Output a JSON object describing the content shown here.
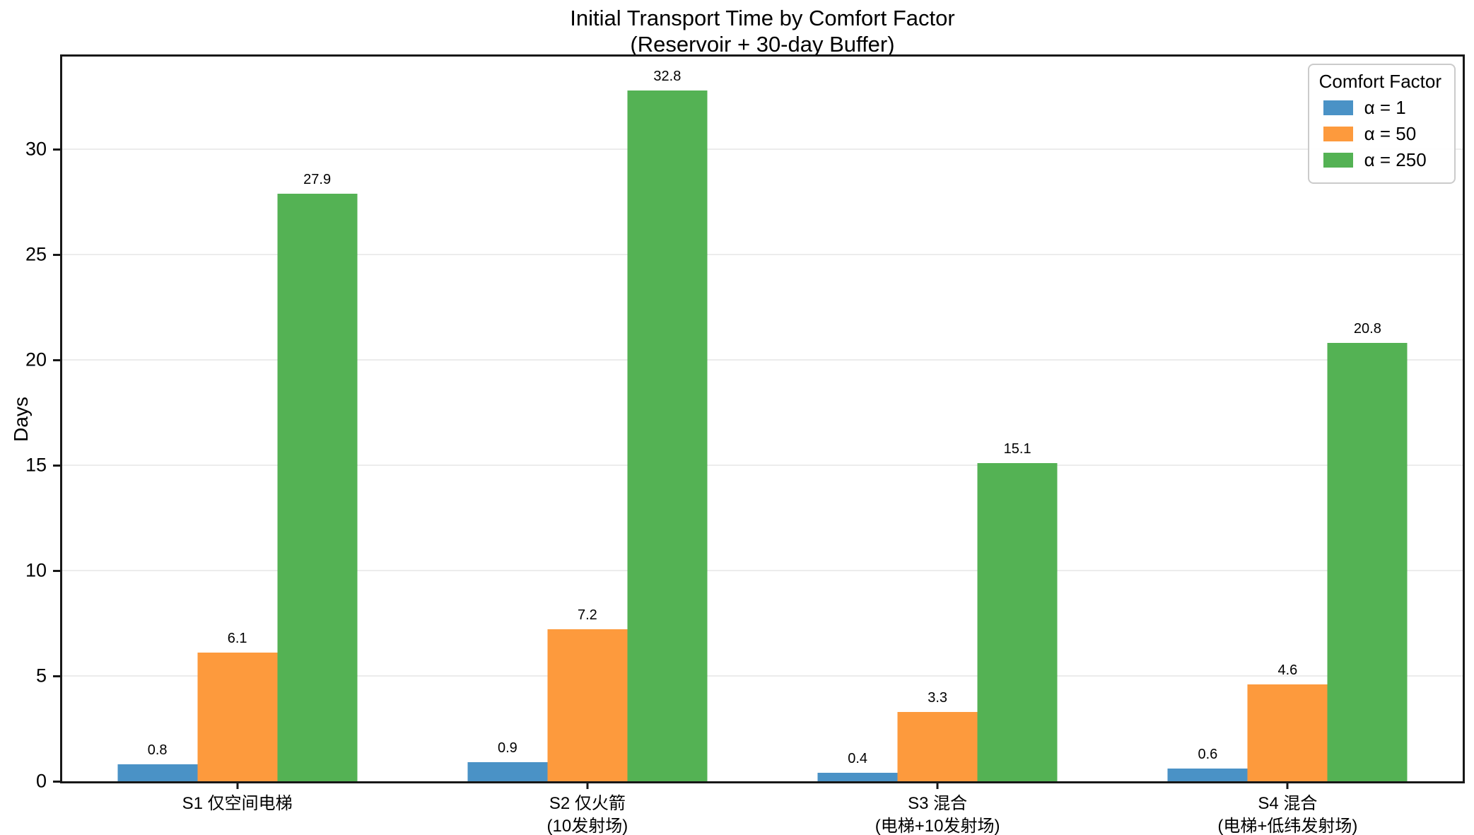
{
  "title": {
    "line1": "Initial Transport Time by Comfort Factor",
    "line2": "(Reservoir + 30-day Buffer)"
  },
  "y_axis": {
    "label": "Days",
    "ticks": [
      0,
      5,
      10,
      15,
      20,
      25,
      30
    ],
    "max": 34.4
  },
  "legend": {
    "title": "Comfort Factor",
    "entries": [
      {
        "label": "α = 1",
        "color": "#4A92C6"
      },
      {
        "label": "α = 50",
        "color": "#FD9A3D"
      },
      {
        "label": "α = 250",
        "color": "#54B254"
      }
    ]
  },
  "chart_data": {
    "type": "bar",
    "title": "Initial Transport Time by Comfort Factor (Reservoir + 30-day Buffer)",
    "categories": [
      "S1 仅空间电梯",
      "S2 仅火箭 (10发射场)",
      "S3 混合 (电梯+10发射场)",
      "S4 混合 (电梯+低纬发射场)"
    ],
    "x_tick_lines": [
      [
        "S1 仅空间电梯"
      ],
      [
        "S2 仅火箭",
        "(10发射场)"
      ],
      [
        "S3 混合",
        "(电梯+10发射场)"
      ],
      [
        "S4 混合",
        "(电梯+低纬发射场)"
      ]
    ],
    "series": [
      {
        "name": "α = 1",
        "color": "#4A92C6",
        "values": [
          0.8,
          0.9,
          0.4,
          0.6
        ]
      },
      {
        "name": "α = 50",
        "color": "#FD9A3D",
        "values": [
          6.1,
          7.2,
          3.3,
          4.6
        ]
      },
      {
        "name": "α = 250",
        "color": "#54B254",
        "values": [
          27.9,
          32.8,
          15.1,
          20.8
        ]
      }
    ],
    "bar_value_labels": [
      [
        "0.8",
        "6.1",
        "27.9"
      ],
      [
        "0.9",
        "7.2",
        "32.8"
      ],
      [
        "0.4",
        "3.3",
        "15.1"
      ],
      [
        "0.6",
        "4.6",
        "20.8"
      ]
    ],
    "xlabel": "",
    "ylabel": "Days",
    "ylim": [
      0,
      34.4
    ],
    "grid": "horizontal",
    "gridline_color": "#ececec",
    "legend_position": "upper right",
    "background": "#ffffff"
  }
}
